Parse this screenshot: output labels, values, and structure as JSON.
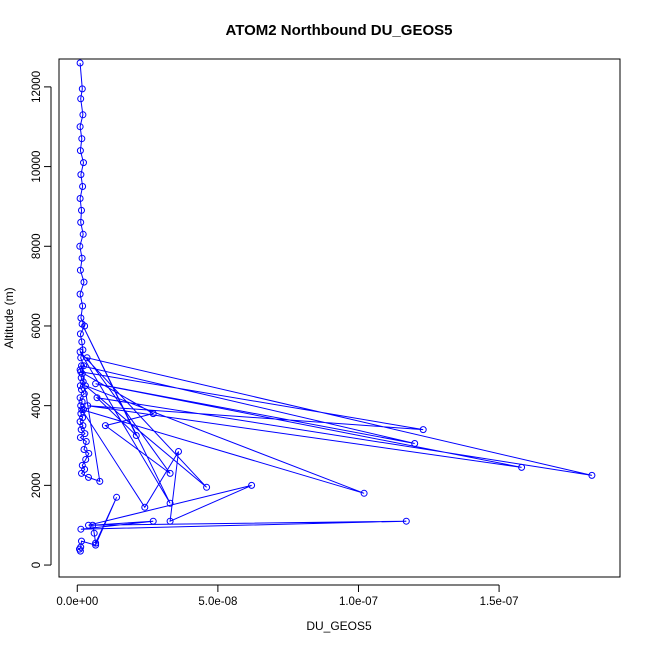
{
  "chart_data": {
    "type": "line",
    "title": "ATOM2 Northbound DU_GEOS5",
    "xlabel": "DU_GEOS5",
    "ylabel": "Altitude (m)",
    "xlim": [
      -6.5e-09,
      1.93e-07
    ],
    "ylim": [
      -300,
      12700
    ],
    "xticks": [
      {
        "value": 0,
        "label": "0.0e+00"
      },
      {
        "value": 5e-08,
        "label": "5.0e-08"
      },
      {
        "value": 1e-07,
        "label": "1.0e-07"
      },
      {
        "value": 1.5e-07,
        "label": "1.5e-07"
      }
    ],
    "yticks": [
      {
        "value": 0,
        "label": "0"
      },
      {
        "value": 2000,
        "label": "2000"
      },
      {
        "value": 4000,
        "label": "4000"
      },
      {
        "value": 6000,
        "label": "6000"
      },
      {
        "value": 8000,
        "label": "8000"
      },
      {
        "value": 10000,
        "label": "10000"
      },
      {
        "value": 12000,
        "label": "12000"
      }
    ],
    "color": "#0000ff",
    "marker": "open-circle",
    "grid": false,
    "series": [
      {
        "name": "",
        "x": [
          1e-09,
          1.8e-09,
          1.2e-09,
          2e-09,
          1e-09,
          1.6e-09,
          1.1e-09,
          2.2e-09,
          1.3e-09,
          1.9e-09,
          1e-09,
          1.5e-09,
          1.2e-09,
          2.1e-09,
          9e-10,
          1.7e-09,
          1.1e-09,
          2.4e-09,
          1e-09,
          1.9e-09,
          1.3e-09,
          2.6e-09,
          1.1e-09,
          1.6e-09,
          2e-09,
          1.2e-09,
          2.3e-09,
          1e-09,
          1.8e-09,
          1.4e-09,
          2.1e-09,
          1.1e-09,
          1.5e-09,
          2.5e-09,
          1e-09,
          1.7e-09,
          1.2e-09,
          2.2e-09,
          1.3e-09,
          1.9e-09,
          1e-09,
          2e-09,
          1.4e-09,
          2.7e-09,
          1.1e-09,
          3.2e-09,
          2.4e-09,
          4.1e-09,
          3e-09,
          1.8e-09,
          2.6e-09,
          1.5e-09,
          4e-09,
          8e-09,
          1.5e-09,
          1.2e-07,
          6.5e-09,
          1.58e-07,
          3.7e-09,
          1.23e-07,
          1.2e-09,
          2.7e-08,
          1e-08,
          3.3e-08,
          3.5e-09,
          1.83e-07,
          7e-09,
          2.1e-08,
          1.7e-09,
          3.3e-08,
          1e-09,
          4.6e-08,
          2.9e-09,
          1.02e-07,
          1.6e-09,
          2.4e-08,
          3.6e-08,
          3.3e-08,
          6.2e-08,
          4e-09,
          1.17e-07,
          1.3e-09,
          2.7e-08,
          5.5e-09,
          6e-09,
          6.5e-09,
          1.4e-08,
          6.5e-09,
          1.5e-09,
          1.2e-09,
          8e-10,
          1.1e-09
        ],
        "y": [
          12600,
          11950,
          11700,
          11300,
          11000,
          10700,
          10400,
          10100,
          9800,
          9500,
          9200,
          8900,
          8600,
          8300,
          8000,
          7700,
          7400,
          7100,
          6800,
          6500,
          6200,
          6000,
          5800,
          5600,
          5400,
          5200,
          5000,
          4900,
          4800,
          4700,
          4600,
          4500,
          4400,
          4300,
          4200,
          4100,
          4000,
          3900,
          3800,
          3700,
          3600,
          3500,
          3400,
          3300,
          3200,
          3100,
          2900,
          2800,
          2650,
          2500,
          2400,
          2300,
          2200,
          2100,
          5000,
          3050,
          4550,
          2450,
          4000,
          3400,
          4850,
          3800,
          3500,
          2300,
          5200,
          2250,
          4200,
          3250,
          6050,
          1550,
          5350,
          1950,
          4500,
          1800,
          3900,
          1450,
          2850,
          1100,
          2000,
          1000,
          1100,
          900,
          1100,
          1000,
          800,
          550,
          1700,
          500,
          600,
          450,
          400,
          350
        ]
      }
    ]
  }
}
